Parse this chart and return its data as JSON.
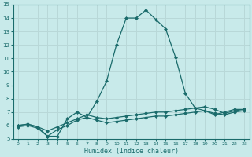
{
  "xlabel": "Humidex (Indice chaleur)",
  "background_color": "#c8eaea",
  "grid_color": "#b8d8d8",
  "line_color": "#1a6b6b",
  "xlim": [
    -0.5,
    23.5
  ],
  "ylim": [
    5,
    15
  ],
  "xticks": [
    0,
    1,
    2,
    3,
    4,
    5,
    6,
    7,
    8,
    9,
    10,
    11,
    12,
    13,
    14,
    15,
    16,
    17,
    18,
    19,
    20,
    21,
    22,
    23
  ],
  "yticks": [
    5,
    6,
    7,
    8,
    9,
    10,
    11,
    12,
    13,
    14,
    15
  ],
  "lines": [
    {
      "x": [
        0,
        1,
        2,
        3,
        4,
        5,
        6,
        7,
        8,
        9,
        10,
        11,
        12,
        13,
        14,
        15,
        16,
        17,
        18,
        19,
        20,
        21,
        22,
        23
      ],
      "y": [
        6.0,
        6.1,
        5.9,
        5.2,
        5.2,
        6.5,
        7.0,
        6.6,
        7.8,
        9.3,
        12.0,
        14.0,
        14.0,
        14.6,
        13.9,
        13.2,
        11.1,
        8.4,
        7.3,
        7.1,
        6.8,
        7.0,
        7.2,
        7.2
      ]
    },
    {
      "x": [
        0,
        1,
        2,
        3,
        4,
        5,
        6,
        7,
        8,
        9,
        10,
        11,
        12,
        13,
        14,
        15,
        16,
        17,
        18,
        19,
        20,
        21,
        22,
        23
      ],
      "y": [
        6.0,
        6.1,
        5.9,
        5.6,
        5.9,
        6.2,
        6.5,
        6.8,
        6.6,
        6.5,
        6.6,
        6.7,
        6.8,
        6.9,
        7.0,
        7.0,
        7.1,
        7.2,
        7.3,
        7.4,
        7.2,
        6.9,
        7.1,
        7.2
      ]
    },
    {
      "x": [
        0,
        1,
        2,
        3,
        4,
        5,
        6,
        7,
        8,
        9,
        10,
        11,
        12,
        13,
        14,
        15,
        16,
        17,
        18,
        19,
        20,
        21,
        22,
        23
      ],
      "y": [
        5.9,
        6.0,
        5.8,
        5.2,
        5.7,
        6.0,
        6.4,
        6.6,
        6.4,
        6.2,
        6.3,
        6.4,
        6.5,
        6.6,
        6.7,
        6.7,
        6.8,
        6.9,
        7.0,
        7.1,
        6.9,
        6.8,
        7.0,
        7.1
      ]
    }
  ]
}
